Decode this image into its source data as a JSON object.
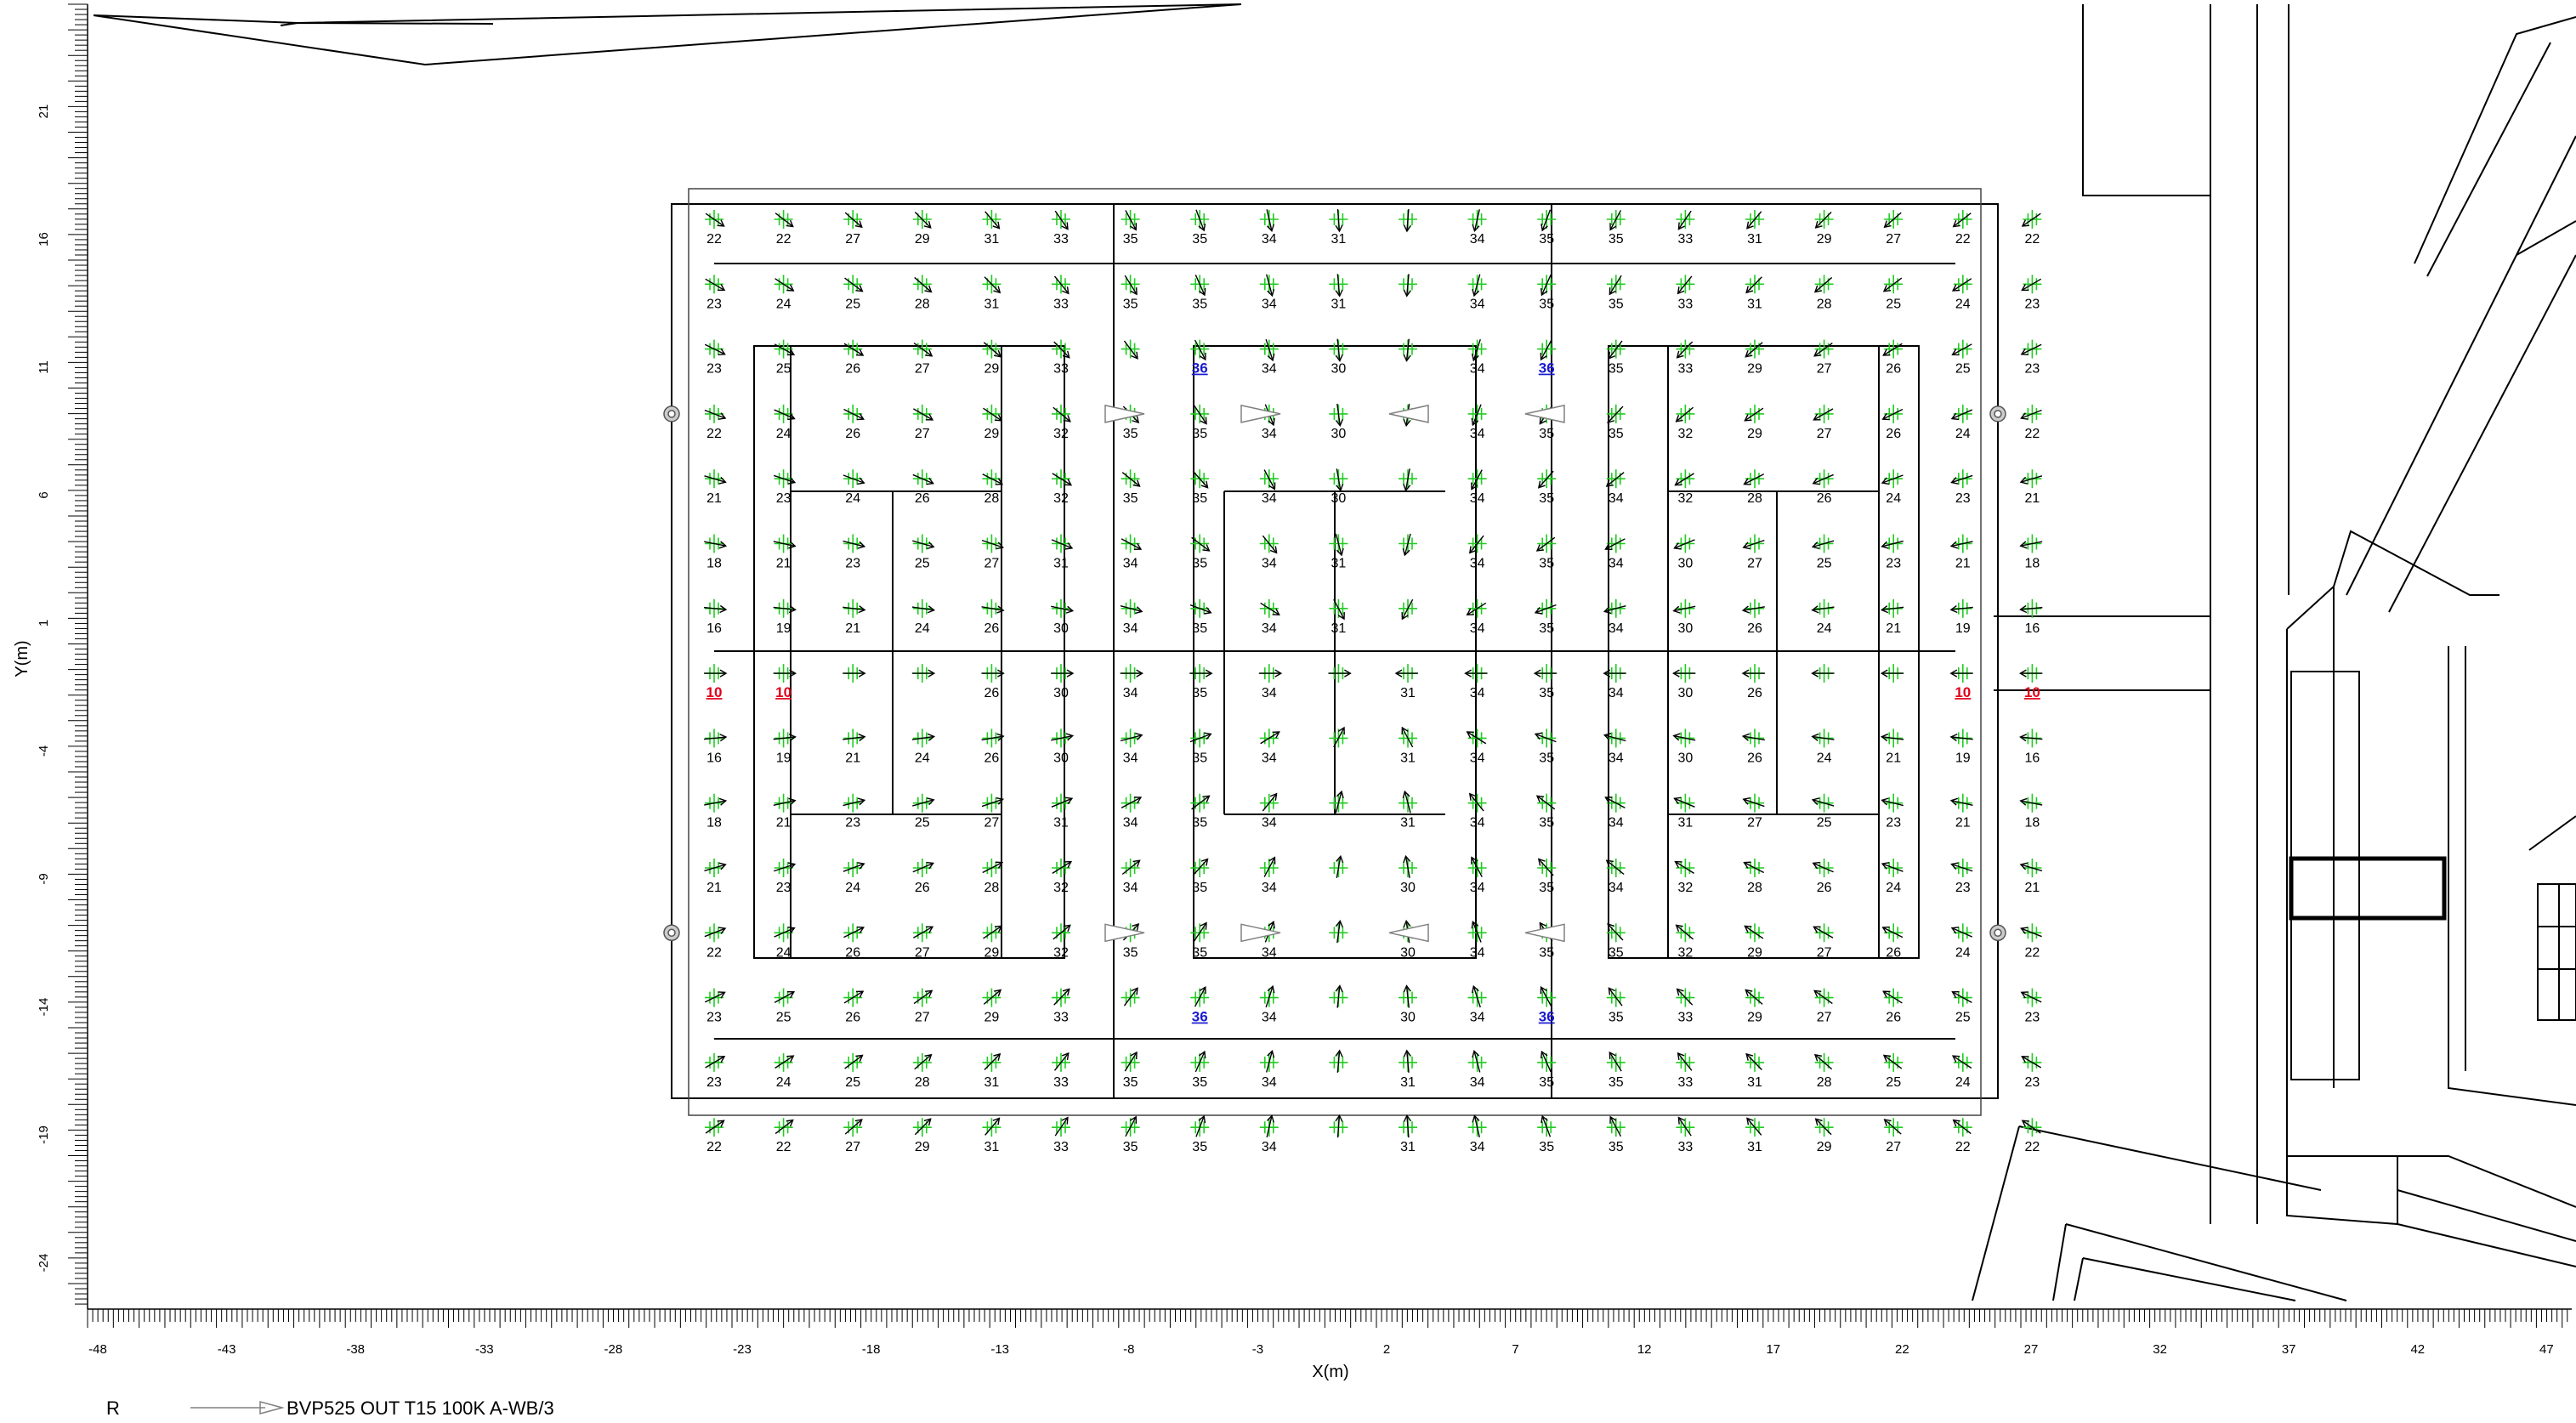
{
  "axes": {
    "xlabel": "X(m)",
    "ylabel": "Y(m)",
    "x_ticks": [
      "-48",
      "-43",
      "-38",
      "-33",
      "-28",
      "-23",
      "-18",
      "-13",
      "-8",
      "-3",
      "2",
      "7",
      "12",
      "17",
      "22",
      "27",
      "32",
      "37",
      "42",
      "47"
    ],
    "y_ticks": [
      "21",
      "16",
      "11",
      "6",
      "1",
      "-4",
      "-9",
      "-14",
      "-19",
      "-24"
    ]
  },
  "legend": {
    "key": "R",
    "label": "BVP525 OUT T15 100K A-WB/3"
  },
  "colors": {
    "grid_marker": "#22cc22",
    "arrow": "#000000",
    "min_value": "#e0001a",
    "max_value": "#1a1ad0",
    "projector": "#808080"
  },
  "aiming_grid": {
    "rows": [
      [
        "22",
        "22",
        "27",
        "29",
        "31",
        "33",
        "35",
        "35",
        "34",
        "31",
        "",
        "34",
        "35",
        "35",
        "33",
        "31",
        "29",
        "27",
        "22",
        "22"
      ],
      [
        "23",
        "24",
        "25",
        "28",
        "31",
        "33",
        "35",
        "35",
        "34",
        "31",
        "",
        "34",
        "35",
        "35",
        "33",
        "31",
        "28",
        "25",
        "24",
        "23"
      ],
      [
        "23",
        "25",
        "26",
        "27",
        "29",
        "33",
        "",
        "36",
        "34",
        "30",
        "",
        "34",
        "36",
        "35",
        "33",
        "29",
        "27",
        "26",
        "25",
        "23"
      ],
      [
        "22",
        "24",
        "26",
        "27",
        "29",
        "32",
        "35",
        "35",
        "34",
        "30",
        "",
        "34",
        "35",
        "35",
        "32",
        "29",
        "27",
        "26",
        "24",
        "22"
      ],
      [
        "21",
        "23",
        "24",
        "26",
        "28",
        "32",
        "35",
        "35",
        "34",
        "30",
        "",
        "34",
        "35",
        "34",
        "32",
        "28",
        "26",
        "24",
        "23",
        "21"
      ],
      [
        "18",
        "21",
        "23",
        "25",
        "27",
        "31",
        "34",
        "35",
        "34",
        "31",
        "",
        "34",
        "35",
        "34",
        "30",
        "27",
        "25",
        "23",
        "21",
        "18"
      ],
      [
        "16",
        "19",
        "21",
        "24",
        "26",
        "30",
        "34",
        "35",
        "34",
        "31",
        "",
        "34",
        "35",
        "34",
        "30",
        "26",
        "24",
        "21",
        "19",
        "16"
      ],
      [
        "10",
        "10",
        "",
        "",
        "26",
        "30",
        "34",
        "35",
        "34",
        "",
        "31",
        "34",
        "35",
        "34",
        "30",
        "26",
        "",
        "",
        "10",
        "10"
      ],
      [
        "16",
        "19",
        "21",
        "24",
        "26",
        "30",
        "34",
        "35",
        "34",
        "",
        "31",
        "34",
        "35",
        "34",
        "30",
        "26",
        "24",
        "21",
        "19",
        "16"
      ],
      [
        "18",
        "21",
        "23",
        "25",
        "27",
        "31",
        "34",
        "35",
        "34",
        "",
        "31",
        "34",
        "35",
        "34",
        "31",
        "27",
        "25",
        "23",
        "21",
        "18"
      ],
      [
        "21",
        "23",
        "24",
        "26",
        "28",
        "32",
        "34",
        "35",
        "34",
        "",
        "30",
        "34",
        "35",
        "34",
        "32",
        "28",
        "26",
        "24",
        "23",
        "21"
      ],
      [
        "22",
        "24",
        "26",
        "27",
        "29",
        "32",
        "35",
        "35",
        "34",
        "",
        "30",
        "34",
        "35",
        "35",
        "32",
        "29",
        "27",
        "26",
        "24",
        "22"
      ],
      [
        "23",
        "25",
        "26",
        "27",
        "29",
        "33",
        "",
        "36",
        "34",
        "",
        "30",
        "34",
        "36",
        "35",
        "33",
        "29",
        "27",
        "26",
        "25",
        "23"
      ],
      [
        "23",
        "24",
        "25",
        "28",
        "31",
        "33",
        "35",
        "35",
        "34",
        "",
        "31",
        "34",
        "35",
        "35",
        "33",
        "31",
        "28",
        "25",
        "24",
        "23"
      ],
      [
        "22",
        "22",
        "27",
        "29",
        "31",
        "33",
        "35",
        "35",
        "34",
        "",
        "31",
        "34",
        "35",
        "35",
        "33",
        "31",
        "29",
        "27",
        "22",
        "22"
      ]
    ],
    "min_value": "10",
    "max_value": "36"
  }
}
